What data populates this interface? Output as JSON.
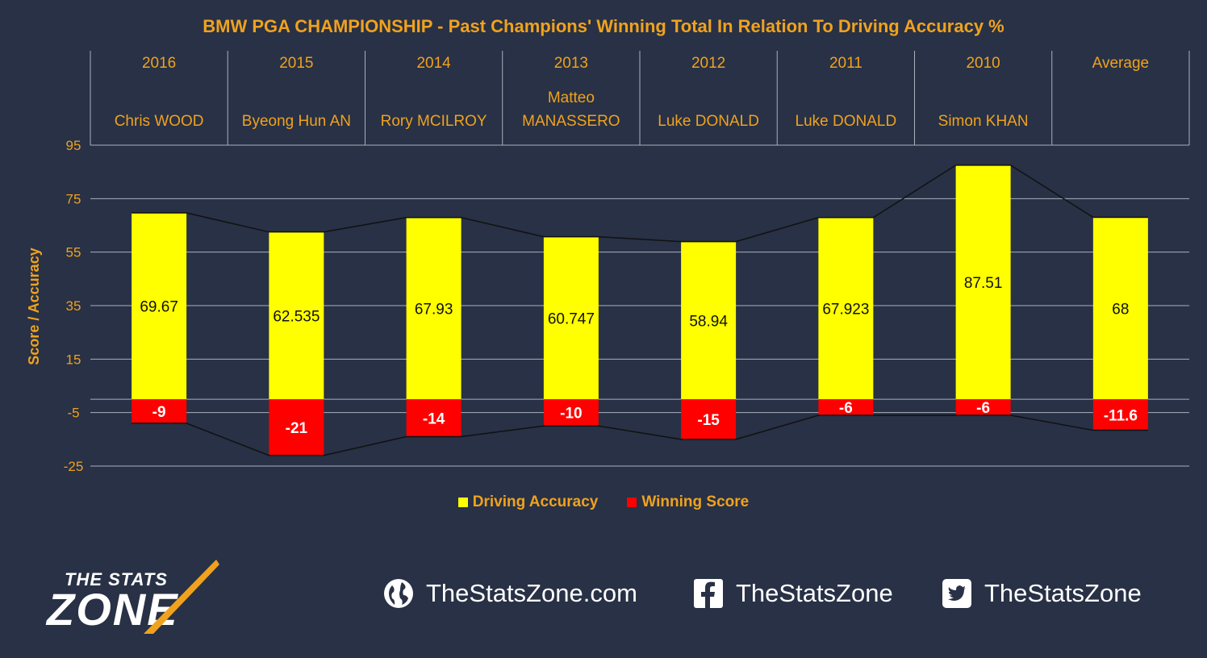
{
  "chart_data": {
    "type": "bar",
    "title": "BMW PGA CHAMPIONSHIP - Past Champions' Winning Total In Relation To Driving Accuracy %",
    "ylabel": "Score / Accuracy",
    "ylim": [
      -25,
      95
    ],
    "yticks": [
      95,
      75,
      55,
      35,
      15,
      -5,
      -25
    ],
    "grid": true,
    "legend_position": "bottom",
    "categories": [
      {
        "year": "2016",
        "player": [
          "Chris WOOD"
        ]
      },
      {
        "year": "2015",
        "player": [
          "Byeong Hun AN"
        ]
      },
      {
        "year": "2014",
        "player": [
          "Rory MCILROY"
        ]
      },
      {
        "year": "2013",
        "player": [
          "Matteo",
          "MANASSERO"
        ]
      },
      {
        "year": "2012",
        "player": [
          "Luke DONALD"
        ]
      },
      {
        "year": "2011",
        "player": [
          "Luke DONALD"
        ]
      },
      {
        "year": "2010",
        "player": [
          "Simon KHAN"
        ]
      },
      {
        "year": "Average",
        "player": []
      }
    ],
    "series": [
      {
        "name": "Driving Accuracy",
        "color": "#ffff00",
        "values": [
          69.67,
          62.535,
          67.93,
          60.747,
          58.94,
          67.923,
          87.51,
          68
        ],
        "labels": [
          "69.67",
          "62.535",
          "67.93",
          "60.747",
          "58.94",
          "67.923",
          "87.51",
          "68"
        ]
      },
      {
        "name": "Winning Score",
        "color": "#ff0000",
        "values": [
          -9,
          -21,
          -14,
          -10,
          -15,
          -6,
          -6,
          -11.6
        ],
        "labels": [
          "-9",
          "-21",
          "-14",
          "-10",
          "-15",
          "-6",
          "-6",
          "-11.6"
        ]
      }
    ]
  },
  "footer": {
    "logo_top": "THE STATS",
    "logo_main": "ZONE",
    "website": "TheStatsZone.com",
    "facebook": "TheStatsZone",
    "twitter": "TheStatsZone",
    "website_icon": "globe-icon",
    "facebook_icon": "facebook-icon",
    "twitter_icon": "twitter-icon"
  }
}
